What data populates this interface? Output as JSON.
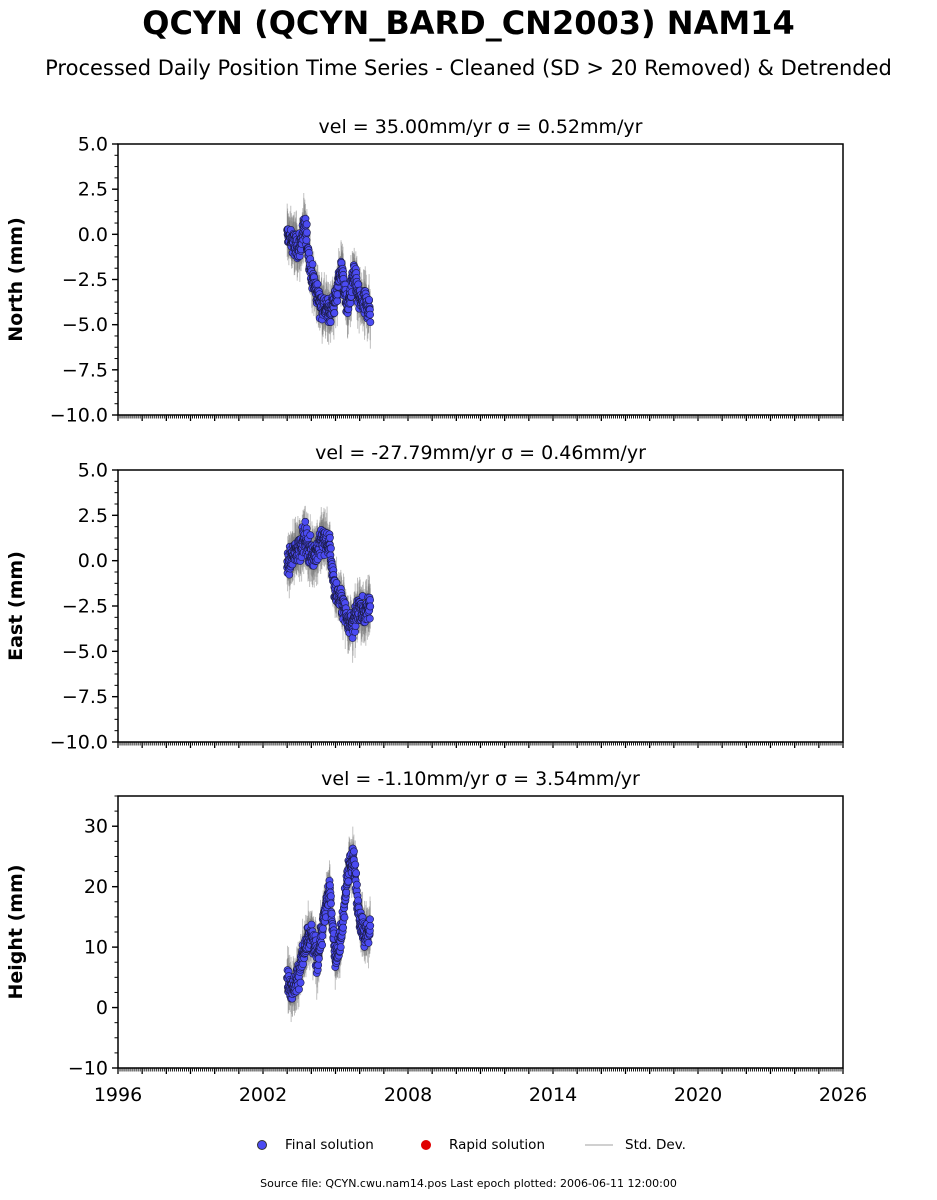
{
  "title": "QCYN (QCYN_BARD_CN2003) NAM14",
  "subtitle": "Processed Daily Position Time Series - Cleaned (SD > 20 Removed) & Detrended",
  "legend": {
    "final": "Final solution",
    "rapid": "Rapid solution",
    "stddev": "Std. Dev."
  },
  "colors": {
    "final": "#4b4bf2",
    "rapid": "#e00000",
    "stddev": "#c8c8c8"
  },
  "source_note": "Source file: QCYN.cwu.nam14.pos  Last epoch plotted: 2006-06-11 12:00:00",
  "chart_data": [
    {
      "type": "scatter",
      "title": "vel = 35.00mm/yr   σ = 0.52mm/yr",
      "ylabel": "North (mm)",
      "xlim": [
        1996,
        2026
      ],
      "ylim": [
        -10,
        5
      ],
      "xticks": [
        1996,
        2002,
        2008,
        2014,
        2020,
        2026
      ],
      "yticks": [
        5.0,
        2.5,
        0.0,
        -2.5,
        -5.0,
        -7.5,
        -10.0
      ],
      "ytick_labels": [
        "5.0",
        "2.5",
        "0.0",
        "−2.5",
        "−5.0",
        "−7.5",
        "−10.0"
      ],
      "data_start": 2003.0,
      "data_end": 2006.44,
      "series": [
        {
          "name": "Final solution",
          "x": [
            2003.0,
            2003.25,
            2003.5,
            2003.75,
            2004.0,
            2004.25,
            2004.5,
            2004.75,
            2005.0,
            2005.25,
            2005.5,
            2005.75,
            2006.0,
            2006.25,
            2006.44
          ],
          "y": [
            0.0,
            -0.5,
            -0.8,
            0.4,
            -2.2,
            -3.3,
            -4.0,
            -4.3,
            -3.6,
            -1.8,
            -4.2,
            -2.2,
            -3.7,
            -3.8,
            -4.2
          ]
        }
      ]
    },
    {
      "type": "scatter",
      "title": "vel = -27.79mm/yr   σ = 0.46mm/yr",
      "ylabel": "East (mm)",
      "xlim": [
        1996,
        2026
      ],
      "ylim": [
        -10,
        5
      ],
      "xticks": [
        1996,
        2002,
        2008,
        2014,
        2020,
        2026
      ],
      "yticks": [
        5.0,
        2.5,
        0.0,
        -2.5,
        -5.0,
        -7.5,
        -10.0
      ],
      "ytick_labels": [
        "5.0",
        "2.5",
        "0.0",
        "−2.5",
        "−5.0",
        "−7.5",
        "−10.0"
      ],
      "data_start": 2003.0,
      "data_end": 2006.44,
      "series": [
        {
          "name": "Final solution",
          "x": [
            2003.0,
            2003.25,
            2003.5,
            2003.75,
            2004.0,
            2004.25,
            2004.5,
            2004.75,
            2005.0,
            2005.25,
            2005.5,
            2005.75,
            2006.0,
            2006.25,
            2006.44
          ],
          "y": [
            -0.3,
            0.3,
            0.8,
            1.3,
            0.3,
            0.6,
            1.2,
            0.8,
            -1.8,
            -2.2,
            -3.2,
            -3.4,
            -2.5,
            -3.0,
            -2.2
          ]
        }
      ]
    },
    {
      "type": "scatter",
      "title": "vel = -1.10mm/yr   σ = 3.54mm/yr",
      "ylabel": "Height (mm)",
      "xlim": [
        1996,
        2026
      ],
      "ylim": [
        -10,
        35
      ],
      "xticks": [
        1996,
        2002,
        2008,
        2014,
        2020,
        2026
      ],
      "yticks": [
        30,
        20,
        10,
        0,
        -10
      ],
      "ytick_labels": [
        "30",
        "20",
        "10",
        "0",
        "−10"
      ],
      "data_start": 2003.0,
      "data_end": 2006.44,
      "series": [
        {
          "name": "Final solution",
          "x": [
            2003.0,
            2003.25,
            2003.5,
            2003.75,
            2004.0,
            2004.25,
            2004.5,
            2004.75,
            2005.0,
            2005.25,
            2005.5,
            2005.75,
            2006.0,
            2006.25,
            2006.44
          ],
          "y": [
            5.0,
            3.0,
            6.0,
            10.0,
            12.0,
            8.0,
            14.0,
            20.0,
            8.0,
            12.0,
            22.0,
            25.0,
            14.0,
            12.0,
            13.0
          ]
        }
      ]
    }
  ]
}
